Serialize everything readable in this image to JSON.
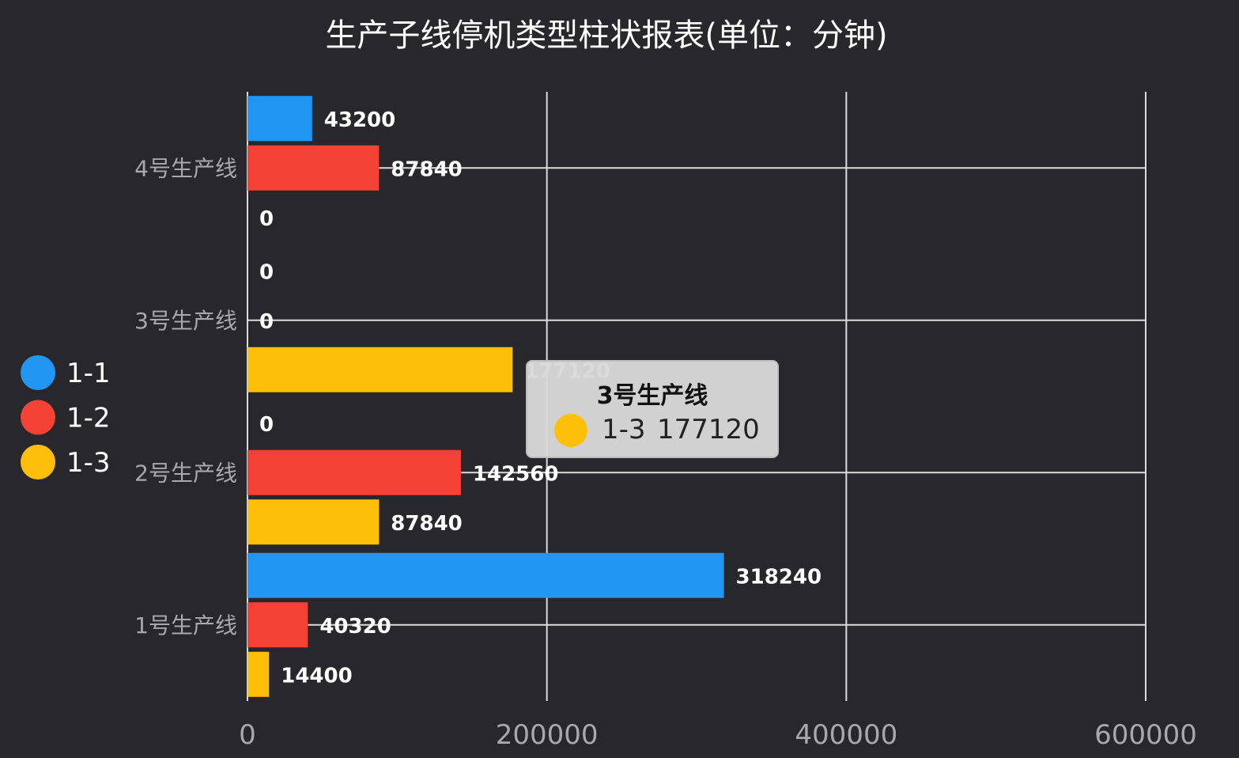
{
  "chart_data": {
    "type": "bar",
    "orientation": "horizontal",
    "title": "生产子线停机类型柱状报表(单位：分钟)",
    "categories": [
      "1号生产线",
      "2号生产线",
      "3号生产线",
      "4号生产线"
    ],
    "series": [
      {
        "name": "1-1",
        "color": "#2196f3",
        "values": [
          318240,
          0,
          0,
          43200
        ]
      },
      {
        "name": "1-2",
        "color": "#f44336",
        "values": [
          40320,
          142560,
          0,
          87840
        ]
      },
      {
        "name": "1-3",
        "color": "#fdbf0a",
        "values": [
          14400,
          87840,
          177120,
          0
        ]
      }
    ],
    "xlim": [
      0,
      600000
    ],
    "xticks": [
      "0",
      "200000",
      "400000",
      "600000"
    ],
    "grid": true,
    "legend_position": "left"
  },
  "tooltip": {
    "title": "3号生产线",
    "series": "1-3",
    "value": "177120",
    "color": "#fdbf0a"
  }
}
